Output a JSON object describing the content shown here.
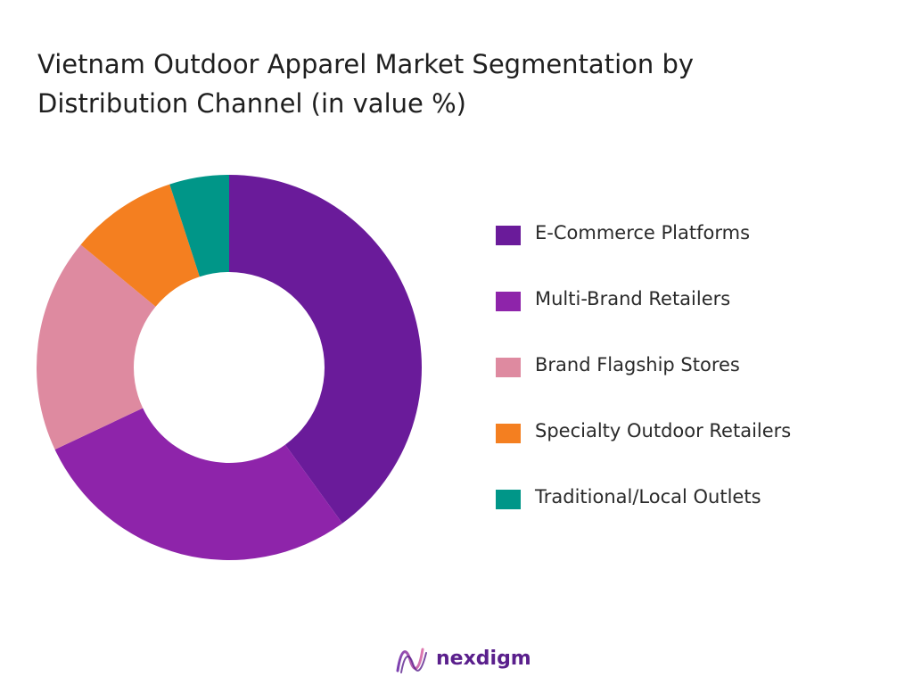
{
  "title": "Vietnam Outdoor Apparel Market Segmentation by Distribution Channel (in value %)",
  "brand": {
    "name": "nexdigm",
    "logo_icon": "nexdigm-wave-logo-icon",
    "color": "#5a1f8c"
  },
  "chart_data": {
    "type": "pie",
    "variant": "donut",
    "title": "Vietnam Outdoor Apparel Market Segmentation by Distribution Channel (in value %)",
    "legend_position": "right",
    "start": "top-center, clockwise",
    "categories": [
      "E-Commerce Platforms",
      "Multi-Brand Retailers",
      "Brand Flagship Stores",
      "Specialty Outdoor Retailers",
      "Traditional/Local Outlets"
    ],
    "values": [
      40,
      28,
      18,
      9,
      5
    ],
    "colors": [
      "#6a1b9a",
      "#8e24aa",
      "#de8aa0",
      "#f47f20",
      "#009688"
    ]
  }
}
